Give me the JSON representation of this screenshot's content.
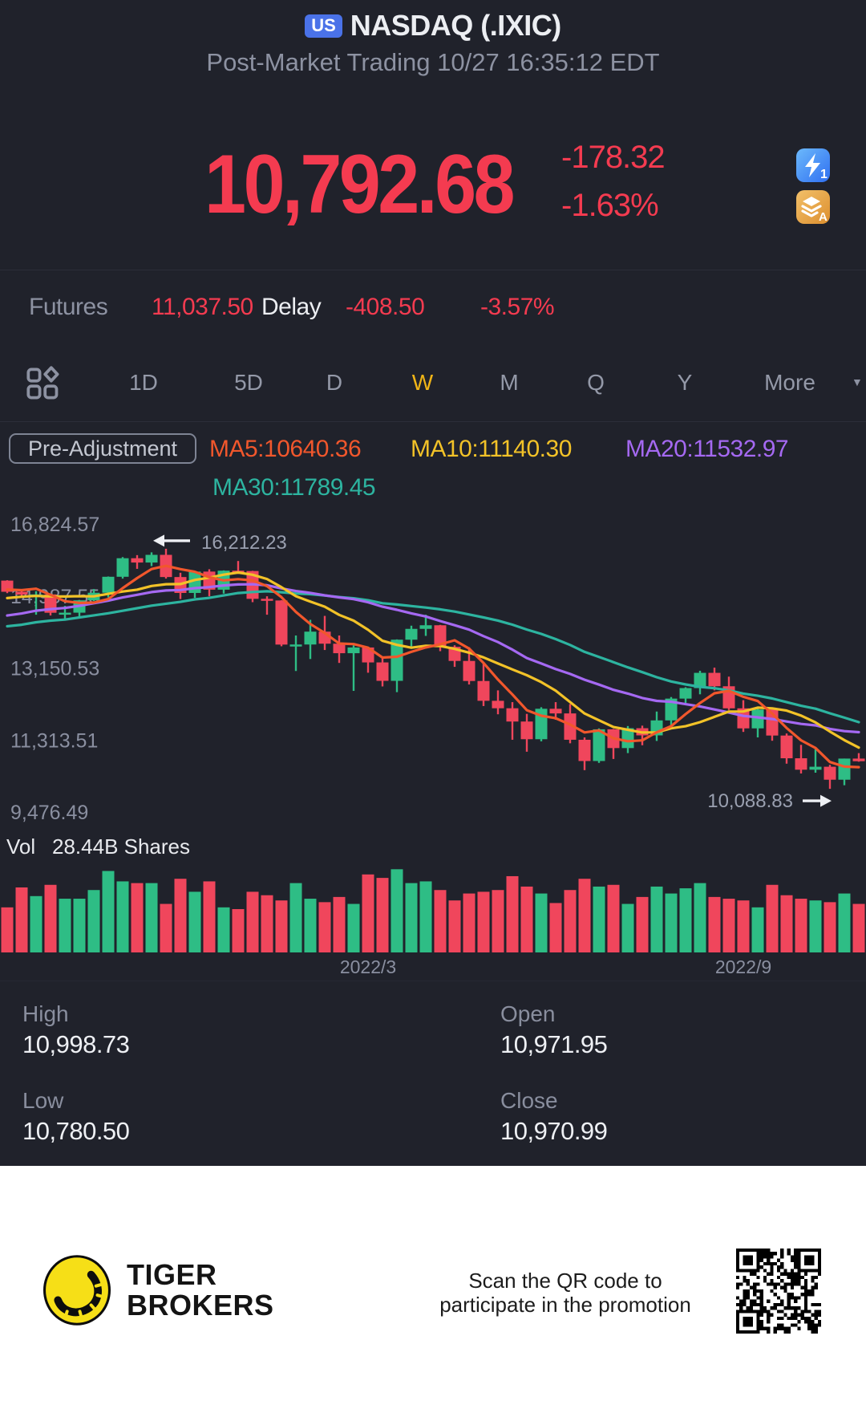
{
  "header": {
    "badge": "US",
    "title": "NASDAQ (.IXIC)",
    "session": "Post-Market Trading 10/27 16:35:12 EDT",
    "price": "10,792.68",
    "change": "-178.32",
    "change_pct": "-1.63%",
    "quick_icons": {
      "flash_label": "1",
      "layers_label": "A"
    }
  },
  "futures": {
    "label": "Futures",
    "price": "11,037.50",
    "delay_label": "Delay",
    "change": "-408.50",
    "change_pct": "-3.57%"
  },
  "periods": {
    "tabs": [
      "1D",
      "5D",
      "D",
      "W",
      "M",
      "Q",
      "Y"
    ],
    "active": "W",
    "more_label": "More",
    "tab_centers": [
      179,
      310,
      417,
      527,
      635,
      743,
      854
    ]
  },
  "indicators": {
    "adjustment_label": "Pre-Adjustment",
    "ma5": "MA5:10640.36",
    "ma10": "MA10:11140.30",
    "ma20": "MA20:11532.97",
    "ma30": "MA30:11789.45"
  },
  "volume": {
    "label": "Vol",
    "value": "28.44B Shares"
  },
  "ohlc": {
    "high_label": "High",
    "high": "10,998.73",
    "open_label": "Open",
    "open": "10,971.95",
    "low_label": "Low",
    "low": "10,780.50",
    "close_label": "Close",
    "close": "10,970.99"
  },
  "footer": {
    "brand_line1": "TIGER",
    "brand_line2": "BROKERS",
    "promo_line1": "Scan the QR code to",
    "promo_line2": "participate in the promotion"
  },
  "colors": {
    "up": "#2ebd85",
    "down": "#f0465c",
    "accent_red": "#f43b50",
    "active_gold": "#f0b517",
    "badge_blue": "#4a72e8",
    "axis_text": "#8a8fa0",
    "annotation_arrow": "#eef0f4",
    "ma5": "#f1572c",
    "ma10": "#f2c228",
    "ma20": "#a569f2",
    "ma30": "#2db4a0"
  },
  "chart_data": {
    "type": "candlestick+volume",
    "period": "weekly",
    "y_axis_labels": [
      "16,824.57",
      "14,987.55",
      "13,150.53",
      "11,313.51",
      "9,476.49"
    ],
    "y_axis_values": [
      16824.57,
      14987.55,
      13150.53,
      11313.51,
      9476.49
    ],
    "x_axis_labels": [
      {
        "label": "2022/3",
        "index": 25
      },
      {
        "label": "2022/9",
        "index": 51
      }
    ],
    "annotations": [
      {
        "type": "high",
        "text": "16,212.23",
        "value": 16212.23,
        "index": 11
      },
      {
        "type": "low",
        "text": "10,088.83",
        "value": 10088.83,
        "index": 57
      }
    ],
    "ma_periods": [
      5,
      10,
      20,
      30
    ],
    "prehistory_closes": [
      13856,
      13874,
      13192,
      13320,
      13820,
      13215,
      13480,
      13900,
      14052,
      13900,
      14139,
      14016,
      13633,
      13749,
      14020,
      13814,
      13749,
      14174,
      14360,
      14500,
      14639,
      14702,
      14837,
      14700,
      14606,
      14823,
      15130,
      14860,
      15364,
      15400
    ],
    "candles": [
      [
        15400,
        15410,
        15080,
        15115
      ],
      [
        15115,
        15175,
        14984,
        15044
      ],
      [
        15044,
        15130,
        14530,
        15048
      ],
      [
        15048,
        15060,
        14510,
        14580
      ],
      [
        14580,
        14755,
        14416,
        14582
      ],
      [
        14582,
        14900,
        14460,
        14897
      ],
      [
        14897,
        15185,
        14880,
        15090
      ],
      [
        15090,
        15505,
        14970,
        15498
      ],
      [
        15498,
        16000,
        15450,
        15971
      ],
      [
        15971,
        16050,
        15700,
        15861
      ],
      [
        15861,
        16121,
        15770,
        16057
      ],
      [
        16057,
        16212.23,
        15451,
        15491
      ],
      [
        15491,
        15600,
        14930,
        15085
      ],
      [
        15085,
        15640,
        14960,
        15630
      ],
      [
        15630,
        15690,
        15000,
        15169
      ],
      [
        15169,
        15660,
        15070,
        15653
      ],
      [
        15653,
        15900,
        15570,
        15644
      ],
      [
        15644,
        15650,
        14850,
        14935
      ],
      [
        14935,
        15000,
        14530,
        14893
      ],
      [
        14893,
        14900,
        13725,
        13768
      ],
      [
        13768,
        14000,
        13094,
        13770
      ],
      [
        13770,
        14400,
        13400,
        14098
      ],
      [
        14098,
        14500,
        13630,
        13791
      ],
      [
        13791,
        14000,
        13300,
        13548
      ],
      [
        13548,
        13750,
        12587,
        13694
      ],
      [
        13694,
        13710,
        13050,
        13313
      ],
      [
        13313,
        13460,
        12700,
        12843
      ],
      [
        12843,
        13900,
        12555,
        13893
      ],
      [
        13893,
        14250,
        13660,
        14169
      ],
      [
        14169,
        14530,
        13990,
        14261
      ],
      [
        14261,
        14270,
        13600,
        13711
      ],
      [
        13711,
        13750,
        13200,
        13351
      ],
      [
        13351,
        13700,
        12750,
        12839
      ],
      [
        12839,
        13300,
        12200,
        12334
      ],
      [
        12334,
        12600,
        11990,
        12144
      ],
      [
        12144,
        12300,
        11340,
        11805
      ],
      [
        11805,
        12000,
        11035,
        11354
      ],
      [
        11354,
        12170,
        11300,
        12131
      ],
      [
        12131,
        12300,
        11850,
        12012
      ],
      [
        12012,
        12250,
        11250,
        11340
      ],
      [
        11340,
        11400,
        10565,
        10798
      ],
      [
        10798,
        11630,
        10750,
        11607
      ],
      [
        11607,
        11615,
        10850,
        11128
      ],
      [
        11128,
        11690,
        11000,
        11635
      ],
      [
        11635,
        11700,
        11200,
        11452
      ],
      [
        11452,
        12060,
        11310,
        11834
      ],
      [
        11834,
        12430,
        11700,
        12390
      ],
      [
        12390,
        12680,
        12280,
        12658
      ],
      [
        12658,
        13100,
        12500,
        13047
      ],
      [
        13047,
        13180,
        12600,
        12705
      ],
      [
        12705,
        12950,
        12100,
        12142
      ],
      [
        12142,
        12350,
        11540,
        11631
      ],
      [
        11631,
        12150,
        11400,
        12112
      ],
      [
        12112,
        12120,
        11315,
        11448
      ],
      [
        11448,
        11500,
        10730,
        10868
      ],
      [
        10868,
        11210,
        10480,
        10576
      ],
      [
        10576,
        11100,
        10500,
        10652
      ],
      [
        10652,
        10700,
        10088.83,
        10321
      ],
      [
        10321,
        10860,
        10180,
        10860
      ],
      [
        10860,
        10998.73,
        10780.5,
        10792.68
      ]
    ],
    "volume_rel": [
      0.52,
      0.75,
      0.65,
      0.78,
      0.62,
      0.62,
      0.72,
      0.94,
      0.82,
      0.8,
      0.8,
      0.56,
      0.85,
      0.7,
      0.82,
      0.52,
      0.5,
      0.7,
      0.66,
      0.6,
      0.8,
      0.62,
      0.58,
      0.64,
      0.56,
      0.9,
      0.86,
      0.96,
      0.8,
      0.82,
      0.72,
      0.6,
      0.68,
      0.7,
      0.72,
      0.88,
      0.76,
      0.68,
      0.57,
      0.72,
      0.85,
      0.76,
      0.78,
      0.56,
      0.64,
      0.76,
      0.68,
      0.74,
      0.8,
      0.64,
      0.62,
      0.6,
      0.52,
      0.78,
      0.66,
      0.62,
      0.6,
      0.58,
      0.68,
      0.56
    ]
  }
}
